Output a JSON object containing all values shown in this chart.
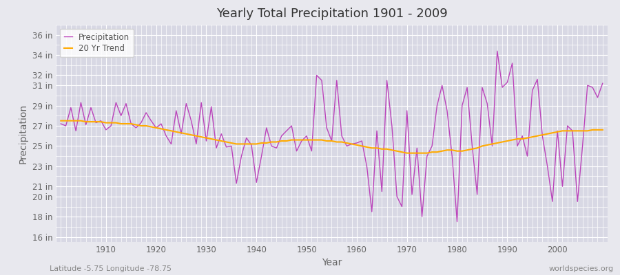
{
  "title": "Yearly Total Precipitation 1901 - 2009",
  "xlabel": "Year",
  "ylabel": "Precipitation",
  "subtitle_left": "Latitude -5.75 Longitude -78.75",
  "subtitle_right": "worldspecies.org",
  "years": [
    1901,
    1902,
    1903,
    1904,
    1905,
    1906,
    1907,
    1908,
    1909,
    1910,
    1911,
    1912,
    1913,
    1914,
    1915,
    1916,
    1917,
    1918,
    1919,
    1920,
    1921,
    1922,
    1923,
    1924,
    1925,
    1926,
    1927,
    1928,
    1929,
    1930,
    1931,
    1932,
    1933,
    1934,
    1935,
    1936,
    1937,
    1938,
    1939,
    1940,
    1941,
    1942,
    1943,
    1944,
    1945,
    1946,
    1947,
    1948,
    1949,
    1950,
    1951,
    1952,
    1953,
    1954,
    1955,
    1956,
    1957,
    1958,
    1959,
    1960,
    1961,
    1962,
    1963,
    1964,
    1965,
    1966,
    1967,
    1968,
    1969,
    1970,
    1971,
    1972,
    1973,
    1974,
    1975,
    1976,
    1977,
    1978,
    1979,
    1980,
    1981,
    1982,
    1983,
    1984,
    1985,
    1986,
    1987,
    1988,
    1989,
    1990,
    1991,
    1992,
    1993,
    1994,
    1995,
    1996,
    1997,
    1998,
    1999,
    2000,
    2001,
    2002,
    2003,
    2004,
    2005,
    2006,
    2007,
    2008,
    2009
  ],
  "precip": [
    27.2,
    27.0,
    28.8,
    26.5,
    29.3,
    27.1,
    28.8,
    27.3,
    27.5,
    26.6,
    27.0,
    29.3,
    28.0,
    29.2,
    27.2,
    26.8,
    27.3,
    28.3,
    27.5,
    26.8,
    27.2,
    26.0,
    25.2,
    28.5,
    26.2,
    29.2,
    27.5,
    25.2,
    29.3,
    25.5,
    28.9,
    24.8,
    26.2,
    24.9,
    25.0,
    21.3,
    24.0,
    25.8,
    25.1,
    21.4,
    24.0,
    26.8,
    25.0,
    24.8,
    26.0,
    26.5,
    27.0,
    24.5,
    25.5,
    26.0,
    24.5,
    32.0,
    31.5,
    26.8,
    25.5,
    31.5,
    26.0,
    25.0,
    25.2,
    25.3,
    25.5,
    23.0,
    18.5,
    26.5,
    20.5,
    31.5,
    27.0,
    20.0,
    19.0,
    28.5,
    20.2,
    24.8,
    18.0,
    24.0,
    25.0,
    29.0,
    31.0,
    28.5,
    24.0,
    17.5,
    29.0,
    30.8,
    25.0,
    20.2,
    30.8,
    29.2,
    25.0,
    34.4,
    30.8,
    31.3,
    33.2,
    25.0,
    26.0,
    24.0,
    30.5,
    31.6,
    26.0,
    23.0,
    19.5,
    26.5,
    21.0,
    27.0,
    26.5,
    19.5,
    25.0,
    31.0,
    30.8,
    29.8,
    31.2
  ],
  "trend": [
    27.5,
    27.5,
    27.5,
    27.5,
    27.5,
    27.4,
    27.4,
    27.4,
    27.4,
    27.3,
    27.3,
    27.3,
    27.2,
    27.2,
    27.2,
    27.1,
    27.0,
    27.0,
    26.9,
    26.8,
    26.7,
    26.6,
    26.5,
    26.4,
    26.3,
    26.2,
    26.1,
    26.0,
    25.9,
    25.8,
    25.7,
    25.6,
    25.5,
    25.4,
    25.3,
    25.2,
    25.2,
    25.2,
    25.2,
    25.2,
    25.3,
    25.3,
    25.4,
    25.4,
    25.5,
    25.5,
    25.6,
    25.6,
    25.6,
    25.6,
    25.6,
    25.6,
    25.6,
    25.5,
    25.5,
    25.4,
    25.4,
    25.3,
    25.2,
    25.1,
    25.0,
    24.9,
    24.8,
    24.8,
    24.7,
    24.7,
    24.6,
    24.5,
    24.4,
    24.3,
    24.3,
    24.3,
    24.3,
    24.3,
    24.4,
    24.4,
    24.5,
    24.6,
    24.6,
    24.5,
    24.5,
    24.6,
    24.7,
    24.8,
    25.0,
    25.1,
    25.2,
    25.3,
    25.4,
    25.5,
    25.6,
    25.7,
    25.7,
    25.8,
    25.9,
    26.0,
    26.1,
    26.2,
    26.3,
    26.4,
    26.5,
    26.5,
    26.5,
    26.5,
    26.5,
    26.5,
    26.6,
    26.6,
    26.6
  ],
  "precip_color": "#bb44bb",
  "trend_color": "#ffaa00",
  "bg_color": "#e8e8ee",
  "plot_bg_color": "#d8d8e4",
  "grid_color": "#ffffff",
  "yticks": [
    16,
    18,
    20,
    21,
    23,
    25,
    27,
    29,
    31,
    32,
    34,
    36
  ],
  "ylim": [
    15.5,
    37.0
  ],
  "xlim": [
    1900,
    2010
  ],
  "xticks": [
    1910,
    1920,
    1930,
    1940,
    1950,
    1960,
    1970,
    1980,
    1990,
    2000
  ]
}
